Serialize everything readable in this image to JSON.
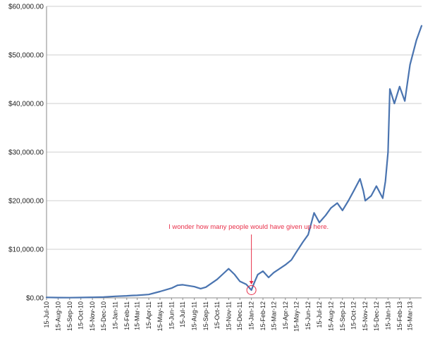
{
  "chart_data": {
    "type": "line",
    "title": "",
    "xlabel": "",
    "ylabel": "",
    "ylim": [
      0,
      60000
    ],
    "yticks": [
      0,
      10000,
      20000,
      30000,
      40000,
      50000,
      60000
    ],
    "ytick_labels": [
      "$0.00",
      "$10,000.00",
      "$20,000.00",
      "$30,000.00",
      "$40,000.00",
      "$50,000.00",
      "$60,000.00"
    ],
    "xticks": [
      "15-Jul-10",
      "15-Aug-10",
      "15-Sep-10",
      "15-Oct-10",
      "15-Nov-10",
      "15-Dec-10",
      "15-Jan-11",
      "15-Feb-11",
      "15-Mar-11",
      "15-Apr-11",
      "15-May-11",
      "15-Jun-11",
      "15-Jul-11",
      "15-Aug-11",
      "15-Sep-11",
      "15-Oct-11",
      "15-Nov-11",
      "15-Dec-11",
      "15-Jan-12",
      "15-Feb-12",
      "15-Mar-12",
      "15-Apr-12",
      "15-May-12",
      "15-Jun-12",
      "15-Jul-12",
      "15-Aug-12",
      "15-Sep-12",
      "15-Oct-12",
      "15-Nov-12",
      "15-Dec-12",
      "15-Jan-13",
      "15-Feb-13",
      "15-Mar-13"
    ],
    "grid": true,
    "legend": "none",
    "line_color": "#4a74b0",
    "series": [
      {
        "points": [
          [
            "15-Jul-10",
            100
          ],
          [
            "15-Aug-10",
            60
          ],
          [
            "15-Sep-10",
            50
          ],
          [
            "15-Oct-10",
            70
          ],
          [
            "15-Nov-10",
            120
          ],
          [
            "15-Dec-10",
            180
          ],
          [
            "15-Jan-11",
            320
          ],
          [
            "15-Feb-11",
            420
          ],
          [
            "1-Mar-11",
            500
          ],
          [
            "15-Mar-11",
            520
          ],
          [
            "15-Apr-11",
            700
          ],
          [
            "15-May-11",
            1300
          ],
          [
            "15-Jun-11",
            2000
          ],
          [
            "1-Jul-11",
            2600
          ],
          [
            "15-Jul-11",
            2700
          ],
          [
            "15-Aug-11",
            2300
          ],
          [
            "1-Sep-11",
            1900
          ],
          [
            "15-Sep-11",
            2200
          ],
          [
            "15-Oct-11",
            3800
          ],
          [
            "1-Nov-11",
            5000
          ],
          [
            "15-Nov-11",
            6000
          ],
          [
            "1-Dec-11",
            4800
          ],
          [
            "15-Dec-11",
            3400
          ],
          [
            "1-Jan-12",
            2800
          ],
          [
            "15-Jan-12",
            1600
          ],
          [
            "22-Jan-12",
            3000
          ],
          [
            "1-Feb-12",
            4800
          ],
          [
            "15-Feb-12",
            5500
          ],
          [
            "1-Mar-12",
            4200
          ],
          [
            "15-Mar-12",
            5200
          ],
          [
            "15-Apr-12",
            6800
          ],
          [
            "1-May-12",
            7800
          ],
          [
            "15-May-12",
            9500
          ],
          [
            "1-Jun-12",
            11500
          ],
          [
            "15-Jun-12",
            13000
          ],
          [
            "1-Jul-12",
            17500
          ],
          [
            "15-Jul-12",
            15500
          ],
          [
            "1-Aug-12",
            17000
          ],
          [
            "15-Aug-12",
            18500
          ],
          [
            "1-Sep-12",
            19500
          ],
          [
            "15-Sep-12",
            18000
          ],
          [
            "1-Oct-12",
            20000
          ],
          [
            "15-Oct-12",
            22000
          ],
          [
            "1-Nov-12",
            24500
          ],
          [
            "10-Nov-12",
            22000
          ],
          [
            "15-Nov-12",
            20000
          ],
          [
            "1-Dec-12",
            21000
          ],
          [
            "15-Dec-12",
            23000
          ],
          [
            "1-Jan-13",
            20500
          ],
          [
            "8-Jan-13",
            24000
          ],
          [
            "15-Jan-13",
            30000
          ],
          [
            "20-Jan-13",
            43000
          ],
          [
            "1-Feb-13",
            40000
          ],
          [
            "15-Feb-13",
            43500
          ],
          [
            "1-Mar-13",
            40500
          ],
          [
            "15-Mar-13",
            48000
          ],
          [
            "1-Apr-13",
            53000
          ],
          [
            "15-Apr-13",
            56000
          ]
        ]
      }
    ],
    "annotations": [
      {
        "text": "I wonder how many people would have given up here.",
        "color": "#e8304a",
        "target": [
          "15-Jan-12",
          1600
        ]
      }
    ]
  }
}
